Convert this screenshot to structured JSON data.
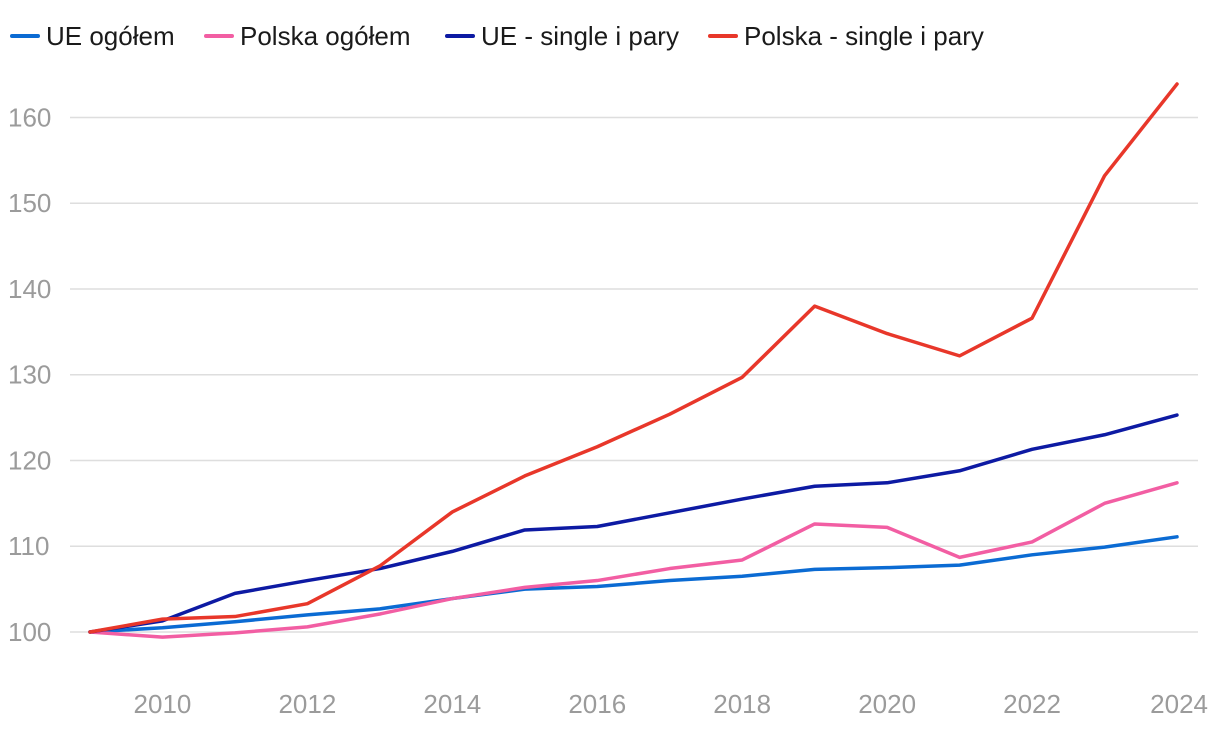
{
  "chart_data": {
    "type": "line",
    "title": "",
    "xlabel": "",
    "ylabel": "",
    "x": [
      2009,
      2010,
      2011,
      2012,
      2013,
      2014,
      2015,
      2016,
      2017,
      2018,
      2019,
      2020,
      2021,
      2022,
      2023,
      2024
    ],
    "xlim": [
      2009,
      2024
    ],
    "ylim": [
      100,
      165
    ],
    "x_ticks": [
      2010,
      2012,
      2014,
      2016,
      2018,
      2020,
      2022,
      2024
    ],
    "x_tick_labels": [
      "2010",
      "2012",
      "2014",
      "2016",
      "2018",
      "2020",
      "2022",
      "2024"
    ],
    "y_ticks": [
      100,
      110,
      120,
      130,
      140,
      150,
      160
    ],
    "y_tick_labels": [
      "100",
      "110",
      "120",
      "130",
      "140",
      "150",
      "160"
    ],
    "grid": true,
    "legend_position": "top",
    "series": [
      {
        "name": "UE ogółem",
        "color": "#0b6bd3",
        "values": [
          100,
          100.5,
          101.2,
          102.0,
          102.7,
          103.9,
          105.0,
          105.3,
          106.0,
          106.5,
          107.3,
          107.5,
          107.8,
          109.0,
          109.9,
          111.1
        ]
      },
      {
        "name": "Polska  ogółem",
        "color": "#f25ea3",
        "values": [
          100,
          99.4,
          99.9,
          100.6,
          102.1,
          103.9,
          105.2,
          106.0,
          107.4,
          108.4,
          112.6,
          112.2,
          108.7,
          110.5,
          115.0,
          117.4
        ]
      },
      {
        "name": "UE - single i pary",
        "color": "#0d1aa3",
        "values": [
          100,
          101.3,
          104.5,
          106.0,
          107.4,
          109.4,
          111.9,
          112.3,
          113.9,
          115.5,
          117.0,
          117.4,
          118.8,
          121.3,
          123.0,
          125.3
        ]
      },
      {
        "name": "Polska - single i pary",
        "color": "#e8372a",
        "values": [
          100,
          101.5,
          101.8,
          103.3,
          107.7,
          114.0,
          118.2,
          121.6,
          125.4,
          129.7,
          138.0,
          134.8,
          132.2,
          136.6,
          153.2,
          163.9
        ]
      }
    ]
  }
}
